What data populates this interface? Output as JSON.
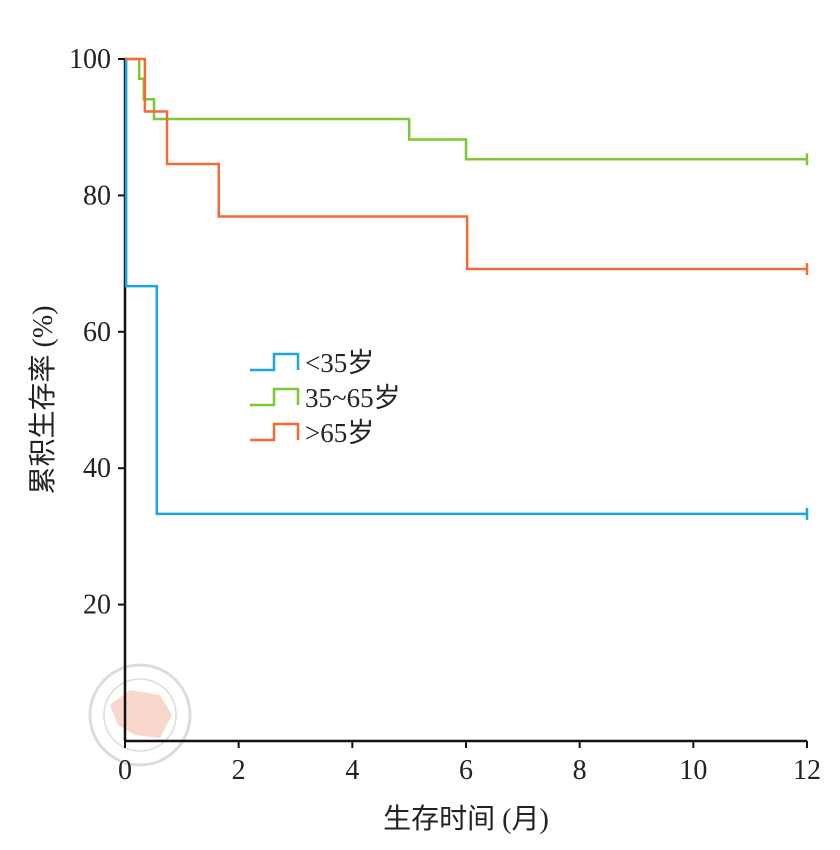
{
  "chart_data": {
    "type": "line",
    "subtype": "kaplan-meier step",
    "xlabel": "生存时间 (月)",
    "ylabel": "累积生存率 (%)",
    "xlim": [
      0,
      12
    ],
    "ylim": [
      0,
      100
    ],
    "xticks": [
      0,
      2,
      4,
      6,
      8,
      10,
      12
    ],
    "yticks": [
      20,
      40,
      60,
      80,
      100
    ],
    "grid": false,
    "legend_position": "center-left",
    "series": [
      {
        "name": "<35岁",
        "color": "#1aa7e0",
        "steps": [
          [
            0,
            100
          ],
          [
            0.02,
            66.7
          ],
          [
            0.56,
            33.3
          ],
          [
            12,
            33.3
          ]
        ],
        "censor": [
          [
            12,
            33.3
          ]
        ]
      },
      {
        "name": "35~65岁",
        "color": "#7dc832",
        "steps": [
          [
            0,
            100
          ],
          [
            0.25,
            97.1
          ],
          [
            0.33,
            94.1
          ],
          [
            0.51,
            91.2
          ],
          [
            5.0,
            88.2
          ],
          [
            6.0,
            85.3
          ],
          [
            12,
            85.3
          ]
        ],
        "censor": [
          [
            12,
            85.3
          ]
        ]
      },
      {
        "name": ">65岁",
        "color": "#f26a35",
        "steps": [
          [
            0,
            100
          ],
          [
            0.35,
            92.3
          ],
          [
            0.74,
            84.6
          ],
          [
            1.65,
            76.9
          ],
          [
            6.02,
            69.2
          ],
          [
            12,
            69.2
          ]
        ],
        "censor": [
          [
            12,
            69.2
          ]
        ]
      }
    ]
  },
  "watermark": "中华医学会 CHINESE MEDICAL ASSOCIATION 1915"
}
